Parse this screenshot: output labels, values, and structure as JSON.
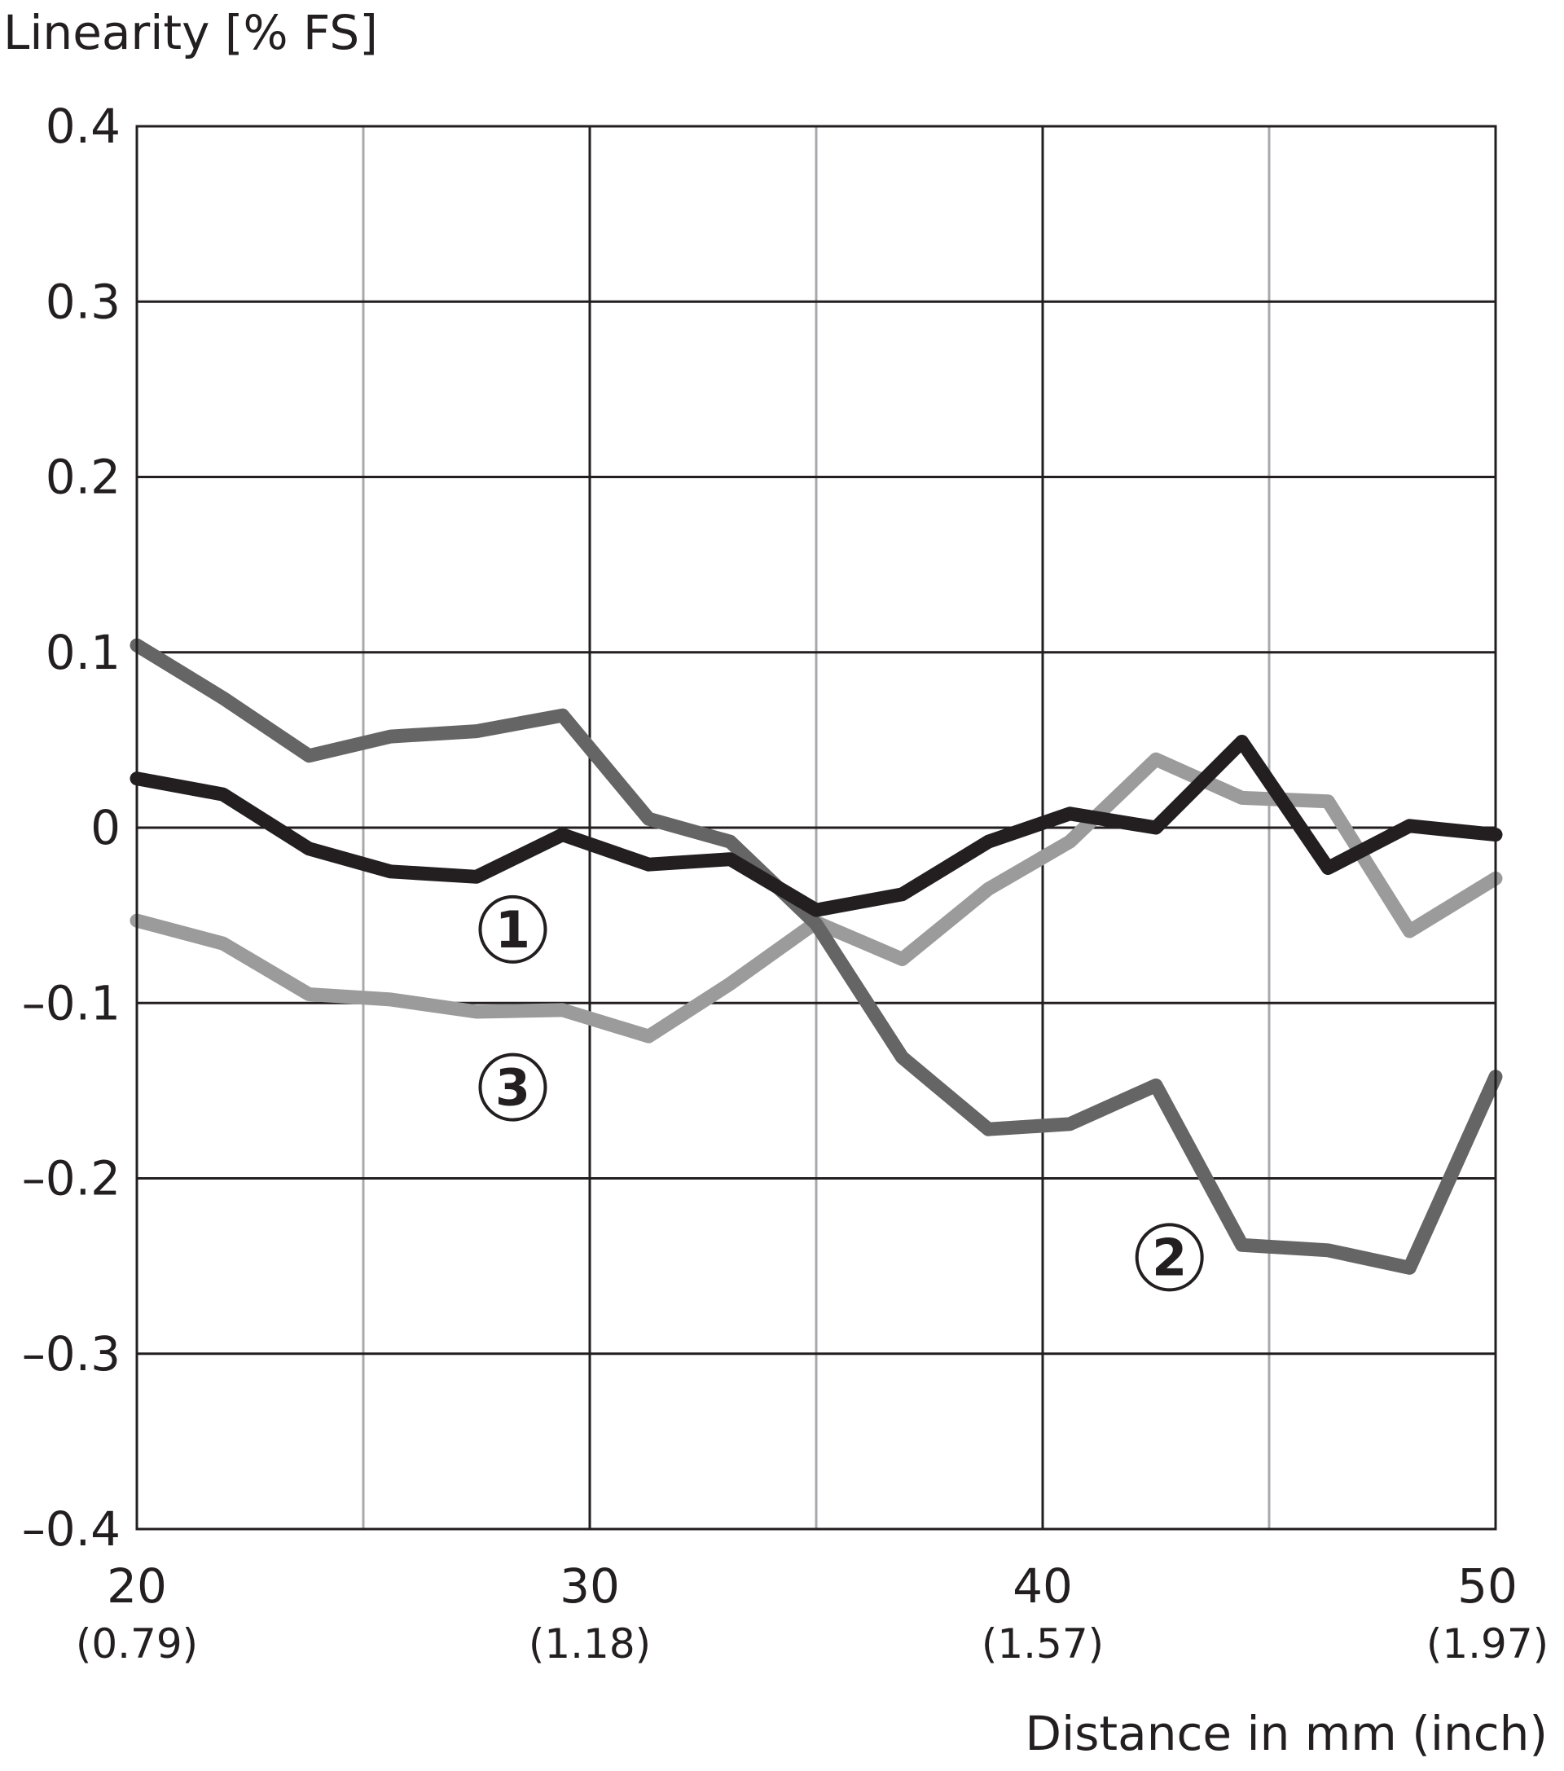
{
  "chart_data": {
    "type": "line",
    "title": "",
    "ylabel": "Linearity [% FS]",
    "xlabel": "Distance in mm (inch)",
    "xlim": [
      20,
      50
    ],
    "ylim": [
      -0.4,
      0.4
    ],
    "grid": true,
    "x_ticks": [
      {
        "value": 20,
        "label": "20",
        "sublabel": "(0.79)"
      },
      {
        "value": 30,
        "label": "30",
        "sublabel": "(1.18)"
      },
      {
        "value": 40,
        "label": "40",
        "sublabel": "(1.57)"
      },
      {
        "value": 50,
        "label": "50",
        "sublabel": "(1.97)"
      }
    ],
    "x_minor_grid": [
      25,
      35,
      45
    ],
    "y_ticks": [
      {
        "value": 0.4,
        "label": "0.4"
      },
      {
        "value": 0.3,
        "label": "0.3"
      },
      {
        "value": 0.2,
        "label": "0.2"
      },
      {
        "value": 0.1,
        "label": "0.1"
      },
      {
        "value": 0,
        "label": "0"
      },
      {
        "value": -0.1,
        "label": "–0.1"
      },
      {
        "value": -0.2,
        "label": "–0.2"
      },
      {
        "value": -0.3,
        "label": "–0.3"
      },
      {
        "value": -0.4,
        "label": "–0.4"
      }
    ],
    "x": [
      20,
      21.9,
      23.8,
      25.6,
      27.5,
      29.4,
      31.3,
      33.1,
      35.0,
      36.9,
      38.8,
      40.6,
      42.5,
      44.4,
      46.3,
      48.1,
      50.0
    ],
    "series": [
      {
        "marker": "①",
        "color": "#231f20",
        "values": [
          0.028,
          0.019,
          -0.012,
          -0.025,
          -0.028,
          -0.004,
          -0.021,
          -0.018,
          -0.047,
          -0.038,
          -0.008,
          0.008,
          0.0,
          0.049,
          -0.023,
          0.001,
          -0.004
        ],
        "marker_at": [
          28.3,
          -0.058
        ]
      },
      {
        "marker": "②",
        "color": "#656565",
        "values": [
          0.104,
          0.074,
          0.041,
          0.052,
          0.055,
          0.064,
          0.005,
          -0.008,
          -0.055,
          -0.131,
          -0.172,
          -0.169,
          -0.147,
          -0.238,
          -0.241,
          -0.251,
          -0.142
        ],
        "marker_at": [
          42.8,
          -0.245
        ]
      },
      {
        "marker": "③",
        "color": "#9b9b9c",
        "values": [
          -0.053,
          -0.066,
          -0.095,
          -0.098,
          -0.105,
          -0.104,
          -0.119,
          -0.089,
          -0.054,
          -0.075,
          -0.035,
          -0.008,
          0.039,
          0.017,
          0.015,
          -0.059,
          -0.029
        ],
        "marker_at": [
          28.3,
          -0.148
        ]
      }
    ]
  }
}
